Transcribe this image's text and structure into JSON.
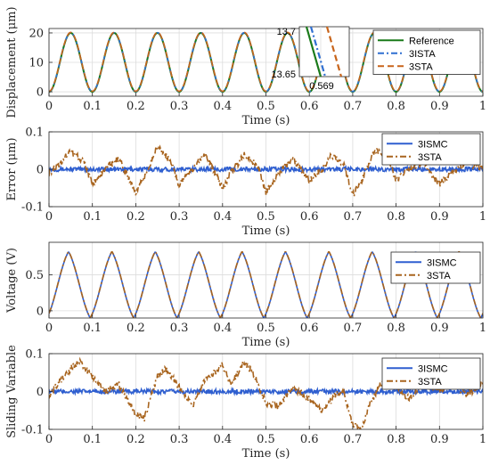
{
  "chart_data": [
    {
      "type": "line",
      "xlabel": "Time (s)",
      "ylabel": "Displacement (μm)",
      "xlim": [
        0,
        1
      ],
      "ylim": [
        -1.5,
        21.5
      ],
      "xticks": [
        0,
        0.1,
        0.2,
        0.3,
        0.4,
        0.5,
        0.6,
        0.7,
        0.8,
        0.9,
        1
      ],
      "xtick_labels": [
        "0",
        "0.1",
        "0.2",
        "0.3",
        "0.4",
        "0.5",
        "0.6",
        "0.7",
        "0.8",
        "0.9",
        "1"
      ],
      "yticks": [
        0,
        10,
        20
      ],
      "ytick_labels": [
        "0",
        "10",
        "20"
      ],
      "grid": true,
      "legend_position": "top-right",
      "signal": {
        "kind": "cosine",
        "frequency_hz": 10,
        "offset": 10,
        "amplitude": 10
      },
      "series": [
        {
          "name": "Reference",
          "color": "#1a7a1a",
          "style": "solid"
        },
        {
          "name": "3ISTA",
          "color": "#2f6fd1",
          "style": "dashdot"
        },
        {
          "name": "3STA",
          "color": "#c8641a",
          "style": "dashed"
        }
      ],
      "inset": {
        "ytick_labels": [
          "13.7",
          "13.65"
        ],
        "xtick_label": "0.569"
      }
    },
    {
      "type": "line",
      "xlabel": "Time (s)",
      "ylabel": "Error (μm)",
      "xlim": [
        0,
        1
      ],
      "ylim": [
        -0.1,
        0.1
      ],
      "xticks": [
        0,
        0.1,
        0.2,
        0.3,
        0.4,
        0.5,
        0.6,
        0.7,
        0.8,
        0.9,
        1
      ],
      "xtick_labels": [
        "0",
        "0.1",
        "0.2",
        "0.3",
        "0.4",
        "0.5",
        "0.6",
        "0.7",
        "0.8",
        "0.9",
        "1"
      ],
      "yticks": [
        -0.1,
        0,
        0.1
      ],
      "ytick_labels": [
        "-0.1",
        "0",
        "0.1"
      ],
      "grid": true,
      "legend_position": "top-right",
      "series": [
        {
          "name": "3ISMC",
          "color": "#2f5fd0",
          "style": "solid",
          "x": [
            0,
            0.1,
            0.2,
            0.3,
            0.4,
            0.5,
            0.6,
            0.7,
            0.8,
            0.9,
            1
          ],
          "y": [
            0,
            0,
            0,
            0,
            0,
            0,
            0,
            0,
            0,
            0,
            0
          ]
        },
        {
          "name": "3STA",
          "color": "#a8641e",
          "style": "dashdot",
          "x": [
            0,
            0.02,
            0.05,
            0.08,
            0.1,
            0.13,
            0.16,
            0.2,
            0.22,
            0.25,
            0.28,
            0.3,
            0.33,
            0.36,
            0.4,
            0.42,
            0.45,
            0.48,
            0.5,
            0.53,
            0.56,
            0.6,
            0.63,
            0.65,
            0.68,
            0.7,
            0.72,
            0.75,
            0.78,
            0.8,
            0.83,
            0.86,
            0.9,
            0.93,
            0.96,
            1
          ],
          "y": [
            -0.01,
            0.01,
            0.05,
            0.02,
            -0.04,
            0.0,
            0.03,
            -0.06,
            -0.02,
            0.06,
            0.02,
            -0.04,
            0.0,
            0.04,
            -0.05,
            -0.01,
            0.04,
            0.01,
            -0.06,
            -0.01,
            0.03,
            -0.03,
            0.0,
            0.04,
            0.01,
            -0.07,
            -0.03,
            0.05,
            0.03,
            -0.03,
            0.0,
            0.02,
            -0.04,
            -0.01,
            0.02,
            0.0
          ]
        }
      ]
    },
    {
      "type": "line",
      "xlabel": "Time (s)",
      "ylabel": "Voltage (V)",
      "xlim": [
        0,
        1
      ],
      "ylim": [
        -0.1,
        0.95
      ],
      "xticks": [
        0,
        0.1,
        0.2,
        0.3,
        0.4,
        0.5,
        0.6,
        0.7,
        0.8,
        0.9,
        1
      ],
      "xtick_labels": [
        "0",
        "0.1",
        "0.2",
        "0.3",
        "0.4",
        "0.5",
        "0.6",
        "0.7",
        "0.8",
        "0.9",
        "1"
      ],
      "yticks": [
        0,
        0.5
      ],
      "ytick_labels": [
        "0",
        "0.5"
      ],
      "grid": true,
      "legend_position": "top-right",
      "signal": {
        "kind": "cosine",
        "frequency_hz": 10,
        "offset": 0.36,
        "amplitude": 0.46,
        "peak_time": 0.045
      },
      "series": [
        {
          "name": "3ISMC",
          "color": "#2f5fd0",
          "style": "solid"
        },
        {
          "name": "3STA",
          "color": "#a8641e",
          "style": "dashdot"
        }
      ]
    },
    {
      "type": "line",
      "xlabel": "Time (s)",
      "ylabel": "Sliding Variable",
      "xlim": [
        0,
        1
      ],
      "ylim": [
        -0.1,
        0.1
      ],
      "xticks": [
        0,
        0.1,
        0.2,
        0.3,
        0.4,
        0.5,
        0.6,
        0.7,
        0.8,
        0.9,
        1
      ],
      "xtick_labels": [
        "0",
        "0.1",
        "0.2",
        "0.3",
        "0.4",
        "0.5",
        "0.6",
        "0.7",
        "0.8",
        "0.9",
        "1"
      ],
      "yticks": [
        -0.1,
        0,
        0.1
      ],
      "ytick_labels": [
        "-0.1",
        "0",
        "0.1"
      ],
      "grid": true,
      "legend_position": "top-right",
      "series": [
        {
          "name": "3ISMC",
          "color": "#2f5fd0",
          "style": "solid",
          "x": [
            0,
            0.1,
            0.2,
            0.3,
            0.4,
            0.5,
            0.6,
            0.7,
            0.8,
            0.9,
            1
          ],
          "y": [
            0,
            0,
            0,
            0,
            0,
            0,
            0,
            0,
            0,
            0,
            0
          ]
        },
        {
          "name": "3STA",
          "color": "#a8641e",
          "style": "dashdot",
          "x": [
            0,
            0.02,
            0.05,
            0.07,
            0.1,
            0.13,
            0.16,
            0.2,
            0.22,
            0.25,
            0.27,
            0.3,
            0.33,
            0.36,
            0.4,
            0.42,
            0.45,
            0.47,
            0.5,
            0.53,
            0.56,
            0.6,
            0.63,
            0.66,
            0.68,
            0.7,
            0.72,
            0.74,
            0.77,
            0.8,
            0.83,
            0.86,
            0.9,
            0.93,
            0.96,
            1
          ],
          "y": [
            -0.01,
            0.02,
            0.06,
            0.08,
            0.04,
            0.0,
            0.02,
            -0.06,
            -0.07,
            0.04,
            0.06,
            0.01,
            -0.04,
            0.03,
            0.07,
            0.02,
            0.08,
            0.05,
            -0.03,
            -0.04,
            0.01,
            -0.02,
            -0.05,
            -0.01,
            0.0,
            -0.09,
            -0.1,
            -0.03,
            0.03,
            0.01,
            -0.02,
            0.02,
            0.0,
            0.03,
            -0.01,
            0.02
          ]
        }
      ]
    }
  ]
}
